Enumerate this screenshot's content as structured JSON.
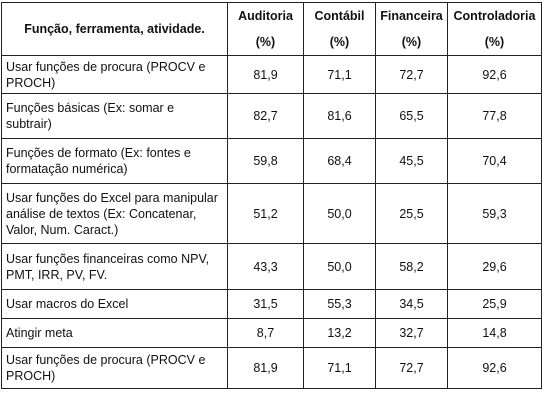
{
  "header": {
    "function_label": "Função, ferramenta, atividade.",
    "cols": [
      {
        "name": "Auditoria",
        "unit": "(%)"
      },
      {
        "name": "Contábil",
        "unit": "(%)"
      },
      {
        "name": "Financeira",
        "unit": "(%)"
      },
      {
        "name": "Controladoria",
        "unit": "(%)"
      }
    ]
  },
  "rows": [
    {
      "label": "Usar funções de procura (PROCV e PROCH)",
      "values": [
        "81,9",
        "71,1",
        "72,7",
        "92,6"
      ]
    },
    {
      "label": "Funções básicas (Ex: somar e subtrair)",
      "values": [
        "82,7",
        "81,6",
        "65,5",
        "77,8"
      ]
    },
    {
      "label": "Funções de formato (Ex: fontes e formatação numérica)",
      "values": [
        "59,8",
        "68,4",
        "45,5",
        "70,4"
      ]
    },
    {
      "label": "Usar funções do Excel para manipular análise de textos (Ex: Concatenar, Valor, Num. Caract.)",
      "values": [
        "51,2",
        "50,0",
        "25,5",
        "59,3"
      ]
    },
    {
      "label": "Usar funções financeiras como NPV, PMT, IRR, PV, FV.",
      "values": [
        "43,3",
        "50,0",
        "58,2",
        "29,6"
      ]
    },
    {
      "label": "Usar macros do Excel",
      "values": [
        "31,5",
        "55,3",
        "34,5",
        "25,9"
      ]
    },
    {
      "label": "Atingir meta",
      "values": [
        "8,7",
        "13,2",
        "32,7",
        "14,8"
      ]
    },
    {
      "label": "Usar funções de procura (PROCV e PROCH)",
      "values": [
        "81,9",
        "71,1",
        "72,7",
        "92,6"
      ]
    }
  ]
}
